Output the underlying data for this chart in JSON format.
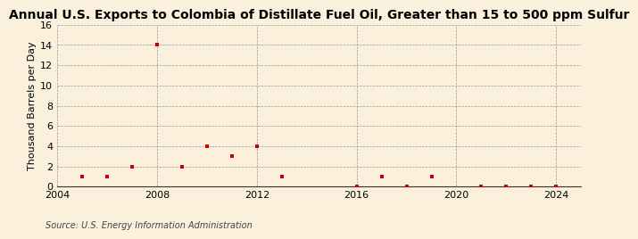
{
  "title": "Annual U.S. Exports to Colombia of Distillate Fuel Oil, Greater than 15 to 500 ppm Sulfur",
  "ylabel": "Thousand Barrels per Day",
  "source": "Source: U.S. Energy Information Administration",
  "years": [
    2005,
    2006,
    2007,
    2008,
    2009,
    2010,
    2011,
    2012,
    2013,
    2016,
    2017,
    2018,
    2019,
    2021,
    2022,
    2023,
    2024
  ],
  "values": [
    1,
    1,
    2,
    14,
    2,
    4,
    3,
    4,
    1,
    0,
    1,
    0,
    1,
    0,
    0,
    0,
    0
  ],
  "marker_color": "#cc0000",
  "marker": "s",
  "marker_size": 3.5,
  "xlim": [
    2004,
    2025
  ],
  "ylim": [
    0,
    16
  ],
  "yticks": [
    0,
    2,
    4,
    6,
    8,
    10,
    12,
    14,
    16
  ],
  "xticks": [
    2004,
    2008,
    2012,
    2016,
    2020,
    2024
  ],
  "bg_color": "#faf0dc",
  "grid_color": "#999999",
  "title_fontsize": 10,
  "label_fontsize": 8,
  "tick_fontsize": 8,
  "source_fontsize": 7
}
